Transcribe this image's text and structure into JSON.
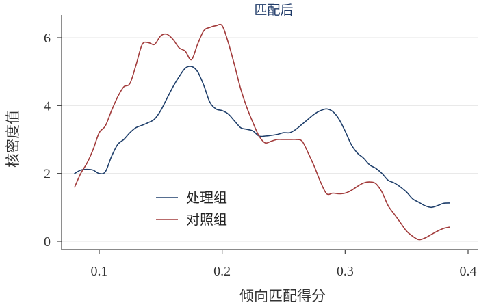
{
  "chart_data": {
    "type": "line",
    "title": "匹配后",
    "xlabel": "倾向匹配得分",
    "ylabel": "核密度值",
    "xlim": [
      0.08,
      0.4
    ],
    "ylim": [
      0,
      6.5
    ],
    "xticks": [
      0.1,
      0.2,
      0.3,
      0.4
    ],
    "xtick_labels": [
      "0.1",
      "0.2",
      "0.3",
      "0.4"
    ],
    "yticks": [
      0,
      2,
      4,
      6
    ],
    "ytick_labels": [
      "0",
      "2",
      "4",
      "6"
    ],
    "grid": true,
    "legend_position": "lower-left",
    "series": [
      {
        "name": "处理组",
        "color": "#1f3f6b",
        "x": [
          0.08,
          0.085,
          0.09,
          0.095,
          0.1,
          0.105,
          0.11,
          0.115,
          0.12,
          0.125,
          0.13,
          0.135,
          0.14,
          0.145,
          0.15,
          0.155,
          0.16,
          0.165,
          0.17,
          0.175,
          0.18,
          0.185,
          0.19,
          0.195,
          0.2,
          0.205,
          0.21,
          0.215,
          0.22,
          0.225,
          0.23,
          0.235,
          0.24,
          0.245,
          0.25,
          0.255,
          0.26,
          0.265,
          0.27,
          0.275,
          0.28,
          0.285,
          0.29,
          0.295,
          0.3,
          0.305,
          0.31,
          0.315,
          0.32,
          0.325,
          0.33,
          0.335,
          0.34,
          0.345,
          0.35,
          0.355,
          0.36,
          0.365,
          0.37,
          0.375,
          0.38,
          0.385
        ],
        "y": [
          2.0,
          2.1,
          2.12,
          2.1,
          2.0,
          2.05,
          2.5,
          2.85,
          3.0,
          3.2,
          3.35,
          3.42,
          3.5,
          3.6,
          3.85,
          4.2,
          4.55,
          4.85,
          5.1,
          5.15,
          5.0,
          4.6,
          4.1,
          3.9,
          3.85,
          3.75,
          3.55,
          3.35,
          3.3,
          3.25,
          3.1,
          3.1,
          3.12,
          3.15,
          3.2,
          3.2,
          3.3,
          3.45,
          3.6,
          3.75,
          3.85,
          3.9,
          3.82,
          3.6,
          3.25,
          2.85,
          2.6,
          2.45,
          2.25,
          2.15,
          2.0,
          1.8,
          1.72,
          1.6,
          1.45,
          1.25,
          1.15,
          1.05,
          1.0,
          1.05,
          1.12,
          1.13
        ]
      },
      {
        "name": "对照组",
        "color": "#a23b3b",
        "x": [
          0.08,
          0.085,
          0.09,
          0.095,
          0.1,
          0.105,
          0.11,
          0.115,
          0.12,
          0.125,
          0.13,
          0.135,
          0.14,
          0.145,
          0.15,
          0.155,
          0.16,
          0.165,
          0.17,
          0.175,
          0.18,
          0.185,
          0.19,
          0.195,
          0.2,
          0.205,
          0.21,
          0.215,
          0.22,
          0.225,
          0.23,
          0.235,
          0.24,
          0.245,
          0.25,
          0.255,
          0.26,
          0.265,
          0.27,
          0.275,
          0.28,
          0.285,
          0.29,
          0.295,
          0.3,
          0.305,
          0.31,
          0.315,
          0.32,
          0.325,
          0.33,
          0.335,
          0.34,
          0.345,
          0.35,
          0.355,
          0.36,
          0.365,
          0.37,
          0.375,
          0.38,
          0.385
        ],
        "y": [
          1.6,
          2.0,
          2.3,
          2.7,
          3.2,
          3.4,
          3.85,
          4.25,
          4.55,
          4.65,
          5.2,
          5.8,
          5.85,
          5.8,
          6.05,
          6.1,
          5.95,
          5.7,
          5.6,
          5.35,
          5.8,
          6.2,
          6.3,
          6.35,
          6.35,
          5.85,
          5.2,
          4.5,
          3.95,
          3.5,
          3.1,
          2.9,
          2.95,
          3.0,
          3.0,
          3.0,
          3.0,
          2.95,
          2.6,
          2.2,
          1.75,
          1.4,
          1.42,
          1.4,
          1.42,
          1.5,
          1.62,
          1.72,
          1.75,
          1.7,
          1.45,
          1.05,
          0.8,
          0.55,
          0.3,
          0.15,
          0.05,
          0.1,
          0.2,
          0.3,
          0.38,
          0.42
        ]
      }
    ]
  }
}
